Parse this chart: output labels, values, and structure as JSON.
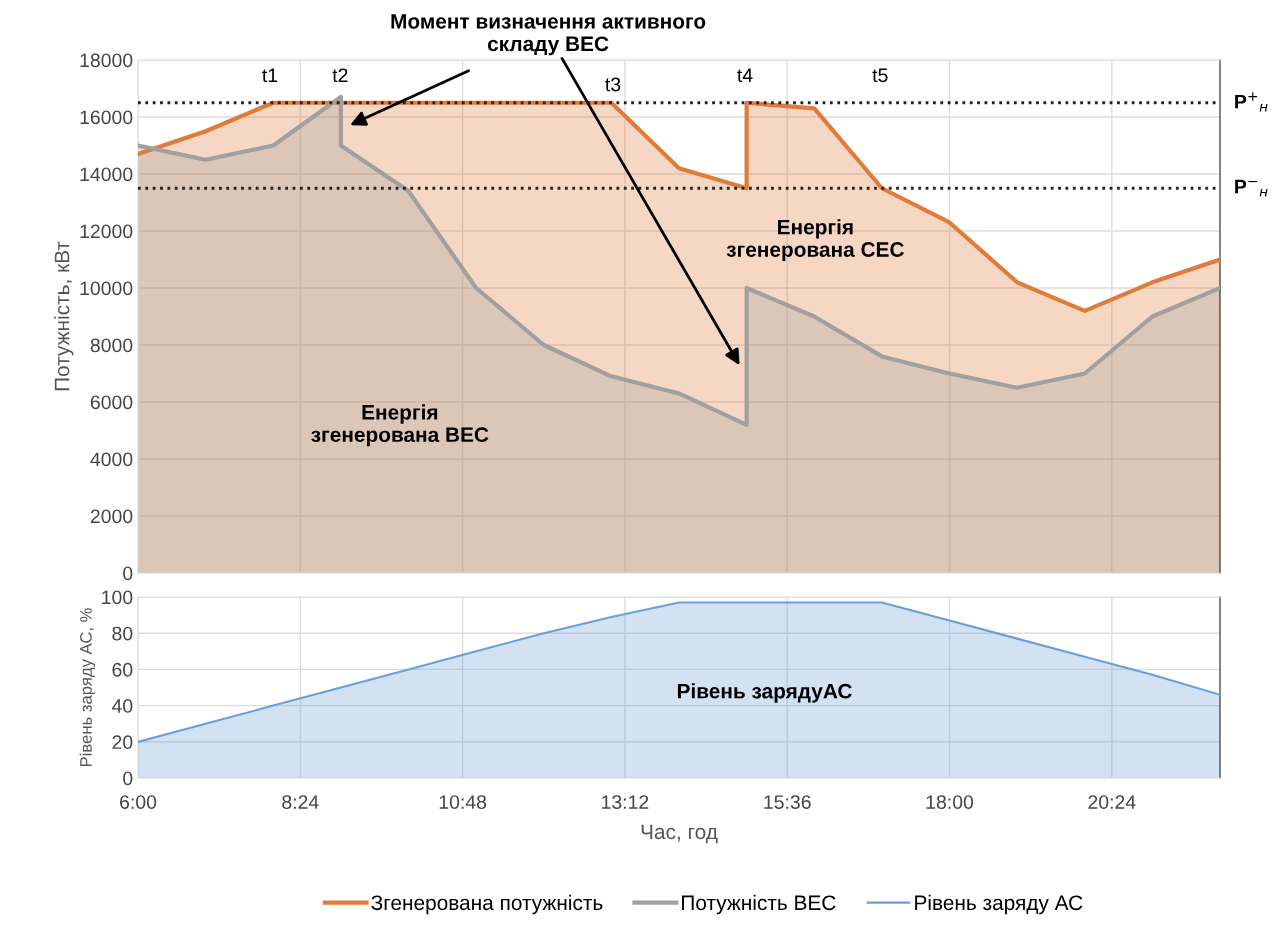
{
  "chart_data": [
    {
      "type": "area",
      "ylabel": "Потужність, кВт",
      "xlim": [
        6,
        22
      ],
      "xticks": [
        {
          "value": 6,
          "label": null
        },
        {
          "value": 8.4,
          "label": null
        },
        {
          "value": 10.8,
          "label": null
        },
        {
          "value": 13.2,
          "label": null
        },
        {
          "value": 15.6,
          "label": null
        },
        {
          "value": 18,
          "label": null
        },
        {
          "value": 20.4,
          "label": null
        }
      ],
      "ylim": [
        0,
        18000
      ],
      "yticks": [
        0,
        2000,
        4000,
        6000,
        8000,
        10000,
        12000,
        14000,
        16000,
        18000
      ],
      "grid": true,
      "tick_labels": "y",
      "legend": "bottom",
      "series": [
        {
          "name": "Згенерована потужність",
          "color": "#e07b39",
          "x": [
            6,
            7,
            8,
            13,
            14,
            15,
            15,
            16,
            17,
            18,
            19,
            20,
            21,
            22
          ],
          "values": [
            14700,
            15500,
            16500,
            16500,
            14200,
            13500,
            16500,
            16300,
            13500,
            12300,
            10200,
            9200,
            10200,
            11000
          ]
        },
        {
          "name": "Потужність ВЕС",
          "color": "#a0a0a0",
          "x": [
            6,
            7,
            8,
            9,
            9,
            10,
            11,
            12,
            13,
            14,
            15,
            15,
            16,
            17,
            18,
            19,
            20,
            21,
            22
          ],
          "values": [
            15000,
            14500,
            15000,
            16700,
            15000,
            13400,
            10000,
            8000,
            6900,
            6300,
            5200,
            10000,
            9000,
            7600,
            7000,
            6500,
            7000,
            9000,
            10000
          ]
        }
      ],
      "ref_lines": [
        {
          "axis": "y",
          "value": 16500,
          "label": "P$^{+}$$_{н}$",
          "color": "#222222",
          "line_style": "dotted"
        },
        {
          "axis": "y",
          "value": 13500,
          "label": "P$^{−}$$_{н}$",
          "color": "#222222",
          "line_style": "dotted"
        }
      ],
      "annotations": [
        "t1",
        "t2",
        "t3",
        "t4",
        "t5",
        "Момент визначення активного\nскладу ВЕС",
        "Енергія\nзгенерована ВЕС",
        "Енергія\nзгенерована СЕС"
      ]
    },
    {
      "type": "area",
      "ylabel": "Рівень заряду АС, %",
      "xlabel": "Час, год",
      "xlim": [
        6,
        22
      ],
      "xticks": [
        {
          "value": 6,
          "label": "6:00"
        },
        {
          "value": 8.4,
          "label": "8:24"
        },
        {
          "value": 10.8,
          "label": "10:48"
        },
        {
          "value": 13.2,
          "label": "13:12"
        },
        {
          "value": 15.6,
          "label": "15:36"
        },
        {
          "value": 18,
          "label": "18:00"
        },
        {
          "value": 20.4,
          "label": "20:24"
        }
      ],
      "ylim": [
        0,
        100
      ],
      "yticks": [
        0,
        20,
        40,
        60,
        80,
        100
      ],
      "grid": true,
      "legend": "bottom",
      "series": [
        {
          "name": "Рівень заряду АС",
          "color": "#6a9fd8",
          "x": [
            6,
            7,
            8,
            9,
            10,
            11,
            12,
            13,
            14,
            15,
            16,
            17,
            18,
            19,
            20,
            21,
            22
          ],
          "values": [
            20,
            30,
            40,
            50,
            60,
            70,
            80,
            89,
            97,
            97,
            97,
            97,
            87,
            77,
            67,
            57,
            46
          ]
        }
      ],
      "annotations": [
        "Рівень зарядуАС"
      ]
    }
  ]
}
